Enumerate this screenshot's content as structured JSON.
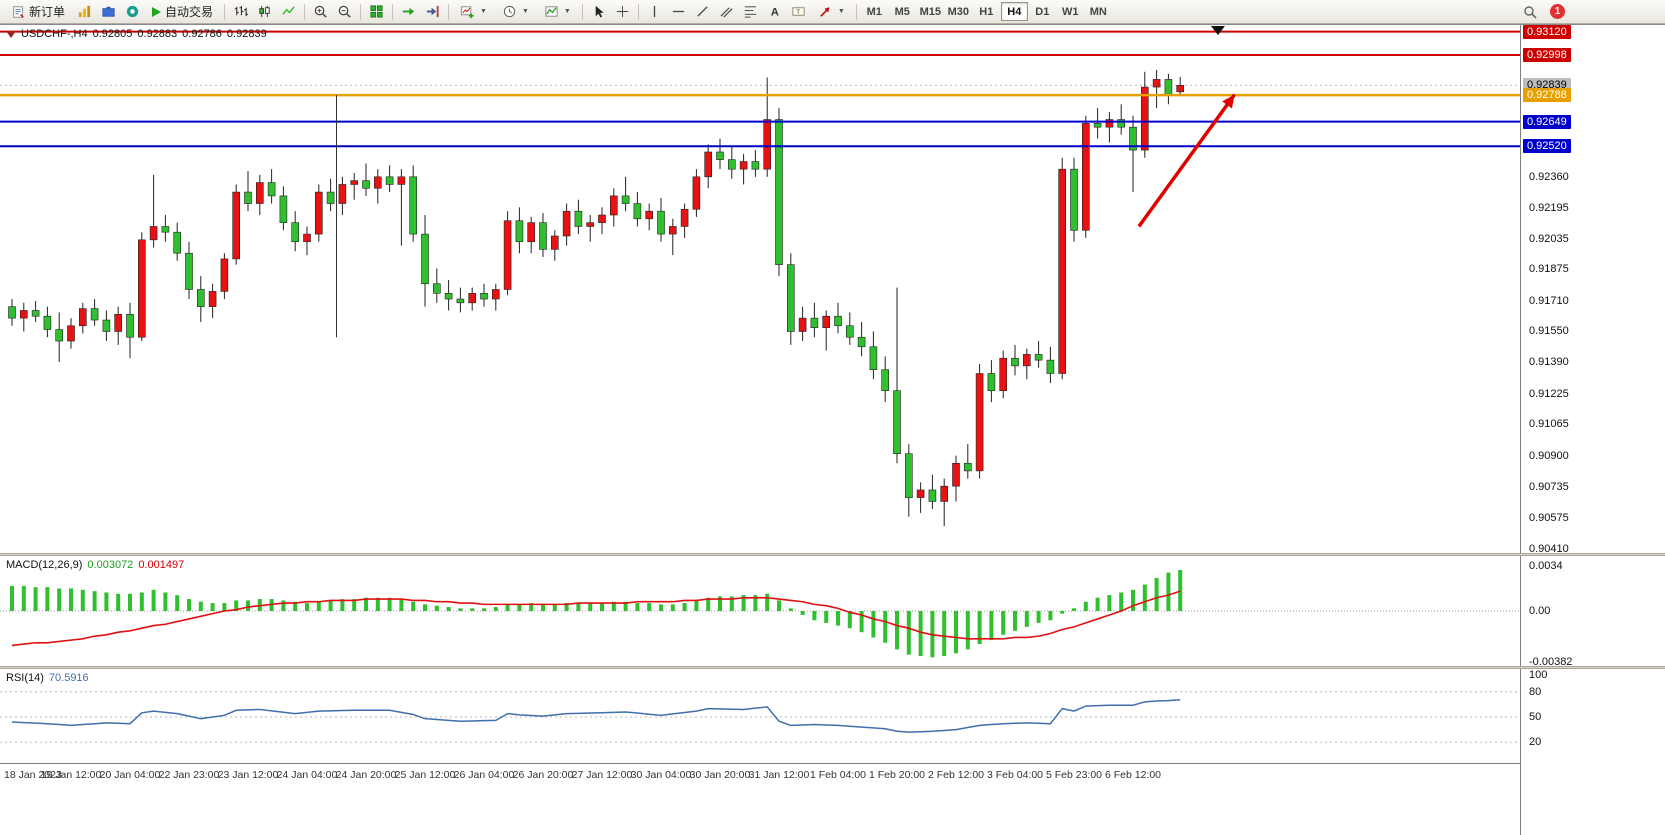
{
  "toolbar": {
    "new_order_label": "新订单",
    "auto_trading_label": "自动交易",
    "timeframes": [
      "M1",
      "M5",
      "M15",
      "M30",
      "H1",
      "H4",
      "D1",
      "W1",
      "MN"
    ],
    "active_timeframe": "H4",
    "notification_count": "1",
    "icon_names": [
      "new-order-icon",
      "market-watch-icon",
      "toolbox-icon",
      "community-icon",
      "autotrading-play-icon",
      "bar-chart-type-icon",
      "candlestick-chart-type-icon",
      "line-chart-type-icon",
      "zoom-in-icon",
      "zoom-out-icon",
      "tile-windows-icon",
      "auto-scroll-icon",
      "chart-shift-icon",
      "new-chart-icon",
      "periods-clock-icon",
      "templates-icon",
      "cursor-icon",
      "crosshair-icon",
      "vertical-line-tool-icon",
      "horizontal-line-tool-icon",
      "trendline-tool-icon",
      "channel-tool-icon",
      "fibonacci-tool-icon",
      "text-tool-icon",
      "label-tool-icon",
      "arrows-tool-icon",
      "search-icon",
      "notification-badge"
    ]
  },
  "chart_data": {
    "type": "candlestick",
    "symbol": "USDCHF-",
    "period": "H4",
    "title": "USDCHF-,H4",
    "ohlc_display": {
      "open": "0.92805",
      "high": "0.92883",
      "low": "0.92786",
      "close": "0.92839"
    },
    "ylim": [
      0.9039,
      0.93155
    ],
    "candles_per_label": 5,
    "x_labels": [
      "18 Jan 2023",
      "19 Jan 12:00",
      "20 Jan 04:00",
      "22 Jan 23:00",
      "23 Jan 12:00",
      "24 Jan 04:00",
      "24 Jan 20:00",
      "25 Jan 12:00",
      "26 Jan 04:00",
      "26 Jan 20:00",
      "27 Jan 12:00",
      "30 Jan 04:00",
      "30 Jan 20:00",
      "31 Jan 12:00",
      "1 Feb 04:00",
      "1 Feb 20:00",
      "2 Feb 12:00",
      "3 Feb 04:00",
      "5 Feb 23:00",
      "6 Feb 12:00"
    ],
    "y_ticks": [
      "0.92360",
      "0.92195",
      "0.92035",
      "0.91875",
      "0.91710",
      "0.91550",
      "0.91390",
      "0.91225",
      "0.91065",
      "0.90900",
      "0.90735",
      "0.90575",
      "0.90410"
    ],
    "hlines": [
      {
        "price": 0.9312,
        "label": "0.93120",
        "color": "#cc0000",
        "width": 2
      },
      {
        "price": 0.92998,
        "label": "0.92998",
        "color": "#cc0000",
        "width": 2
      },
      {
        "price": 0.92788,
        "label": "0.92788",
        "color": "#e8a000",
        "width": 2.5
      },
      {
        "price": 0.92649,
        "label": "0.92649",
        "color": "#0000cc",
        "width": 2
      },
      {
        "price": 0.9252,
        "label": "0.92520",
        "color": "#0000cc",
        "width": 2
      }
    ],
    "bid": {
      "price": 0.92839,
      "label": "0.92839",
      "tag_bg": "#bcbcbc",
      "tag_fg": "#000000"
    },
    "colors": {
      "up": "#e81212",
      "down": "#2fbf2f",
      "wick": "#222222",
      "macd_hist": "#2fbf2f",
      "macd_signal": "#e01010",
      "rsi_line": "#3f6fae",
      "arrow": "#e00000"
    },
    "candles": [
      [
        0.9168,
        0.9172,
        0.9158,
        0.9162
      ],
      [
        0.9162,
        0.917,
        0.9155,
        0.9166
      ],
      [
        0.9166,
        0.9171,
        0.916,
        0.9163
      ],
      [
        0.9163,
        0.9168,
        0.9152,
        0.9156
      ],
      [
        0.9156,
        0.9165,
        0.9139,
        0.915
      ],
      [
        0.915,
        0.9162,
        0.9146,
        0.9158
      ],
      [
        0.9158,
        0.917,
        0.9154,
        0.9167
      ],
      [
        0.9167,
        0.9172,
        0.9158,
        0.9161
      ],
      [
        0.9161,
        0.9166,
        0.915,
        0.9155
      ],
      [
        0.9155,
        0.9168,
        0.9148,
        0.9164
      ],
      [
        0.9164,
        0.917,
        0.9141,
        0.9152
      ],
      [
        0.9152,
        0.9207,
        0.915,
        0.9203
      ],
      [
        0.9203,
        0.9237,
        0.9199,
        0.921
      ],
      [
        0.921,
        0.9216,
        0.9202,
        0.9207
      ],
      [
        0.9207,
        0.9212,
        0.9192,
        0.9196
      ],
      [
        0.9196,
        0.9202,
        0.9172,
        0.9177
      ],
      [
        0.9177,
        0.9184,
        0.916,
        0.9168
      ],
      [
        0.9168,
        0.918,
        0.9162,
        0.9176
      ],
      [
        0.9176,
        0.9196,
        0.9172,
        0.9193
      ],
      [
        0.9193,
        0.9232,
        0.919,
        0.9228
      ],
      [
        0.9228,
        0.9239,
        0.9218,
        0.9222
      ],
      [
        0.9222,
        0.9237,
        0.9216,
        0.9233
      ],
      [
        0.9233,
        0.924,
        0.9222,
        0.9226
      ],
      [
        0.9226,
        0.9231,
        0.9208,
        0.9212
      ],
      [
        0.9212,
        0.9218,
        0.9197,
        0.9202
      ],
      [
        0.9202,
        0.921,
        0.9195,
        0.9206
      ],
      [
        0.9206,
        0.9232,
        0.9202,
        0.9228
      ],
      [
        0.9228,
        0.9235,
        0.9218,
        0.9222
      ],
      [
        0.9222,
        0.9236,
        0.9216,
        0.9232
      ],
      [
        0.9232,
        0.9238,
        0.9224,
        0.9234
      ],
      [
        0.9234,
        0.9243,
        0.9226,
        0.923
      ],
      [
        0.923,
        0.924,
        0.9222,
        0.9236
      ],
      [
        0.9236,
        0.9242,
        0.9228,
        0.9232
      ],
      [
        0.9232,
        0.924,
        0.92,
        0.9236
      ],
      [
        0.9236,
        0.9242,
        0.9202,
        0.9206
      ],
      [
        0.9206,
        0.9216,
        0.9168,
        0.918
      ],
      [
        0.918,
        0.9188,
        0.917,
        0.9175
      ],
      [
        0.9175,
        0.9182,
        0.9166,
        0.9172
      ],
      [
        0.9172,
        0.9178,
        0.9165,
        0.917
      ],
      [
        0.917,
        0.9178,
        0.9166,
        0.9175
      ],
      [
        0.9175,
        0.918,
        0.9168,
        0.9172
      ],
      [
        0.9172,
        0.918,
        0.9166,
        0.9177
      ],
      [
        0.9177,
        0.9218,
        0.9174,
        0.9213
      ],
      [
        0.9213,
        0.922,
        0.9196,
        0.9202
      ],
      [
        0.9202,
        0.9215,
        0.9196,
        0.9212
      ],
      [
        0.9212,
        0.9217,
        0.9194,
        0.9198
      ],
      [
        0.9198,
        0.9208,
        0.9192,
        0.9205
      ],
      [
        0.9205,
        0.9222,
        0.92,
        0.9218
      ],
      [
        0.9218,
        0.9224,
        0.9206,
        0.921
      ],
      [
        0.921,
        0.9216,
        0.9202,
        0.9212
      ],
      [
        0.9212,
        0.922,
        0.9206,
        0.9216
      ],
      [
        0.9216,
        0.923,
        0.921,
        0.9226
      ],
      [
        0.9226,
        0.9236,
        0.9218,
        0.9222
      ],
      [
        0.9222,
        0.9228,
        0.921,
        0.9214
      ],
      [
        0.9214,
        0.9222,
        0.9208,
        0.9218
      ],
      [
        0.9218,
        0.9225,
        0.9202,
        0.9206
      ],
      [
        0.9206,
        0.9214,
        0.9195,
        0.921
      ],
      [
        0.921,
        0.9222,
        0.9204,
        0.9219
      ],
      [
        0.9219,
        0.924,
        0.9215,
        0.9236
      ],
      [
        0.9236,
        0.9253,
        0.923,
        0.9249
      ],
      [
        0.9249,
        0.9256,
        0.924,
        0.9245
      ],
      [
        0.9245,
        0.9252,
        0.9235,
        0.924
      ],
      [
        0.924,
        0.9248,
        0.9232,
        0.9244
      ],
      [
        0.9244,
        0.925,
        0.9236,
        0.924
      ],
      [
        0.924,
        0.9288,
        0.9236,
        0.9266
      ],
      [
        0.9266,
        0.9272,
        0.9184,
        0.919
      ],
      [
        0.919,
        0.9196,
        0.9148,
        0.9155
      ],
      [
        0.9155,
        0.9168,
        0.915,
        0.9162
      ],
      [
        0.9162,
        0.917,
        0.9152,
        0.9157
      ],
      [
        0.9157,
        0.9166,
        0.9145,
        0.9163
      ],
      [
        0.9163,
        0.917,
        0.9154,
        0.9158
      ],
      [
        0.9158,
        0.9165,
        0.9148,
        0.9152
      ],
      [
        0.9152,
        0.916,
        0.9142,
        0.9147
      ],
      [
        0.9147,
        0.9155,
        0.913,
        0.9135
      ],
      [
        0.9135,
        0.9142,
        0.9118,
        0.9124
      ],
      [
        0.9124,
        0.9178,
        0.9086,
        0.9091
      ],
      [
        0.9091,
        0.9096,
        0.9058,
        0.9068
      ],
      [
        0.9068,
        0.9076,
        0.906,
        0.9072
      ],
      [
        0.9072,
        0.908,
        0.9062,
        0.9066
      ],
      [
        0.9066,
        0.9078,
        0.9053,
        0.9074
      ],
      [
        0.9074,
        0.909,
        0.9066,
        0.9086
      ],
      [
        0.9086,
        0.9096,
        0.9078,
        0.9082
      ],
      [
        0.9082,
        0.9138,
        0.9078,
        0.9133
      ],
      [
        0.9133,
        0.914,
        0.9118,
        0.9124
      ],
      [
        0.9124,
        0.9145,
        0.912,
        0.9141
      ],
      [
        0.9141,
        0.9148,
        0.9132,
        0.9137
      ],
      [
        0.9137,
        0.9146,
        0.913,
        0.9143
      ],
      [
        0.9143,
        0.915,
        0.9136,
        0.914
      ],
      [
        0.914,
        0.9147,
        0.9128,
        0.9133
      ],
      [
        0.9133,
        0.9246,
        0.913,
        0.924
      ],
      [
        0.924,
        0.9246,
        0.9202,
        0.9208
      ],
      [
        0.9208,
        0.9268,
        0.9204,
        0.9264
      ],
      [
        0.9264,
        0.9272,
        0.9256,
        0.9262
      ],
      [
        0.9262,
        0.927,
        0.9254,
        0.9266
      ],
      [
        0.9266,
        0.9274,
        0.9258,
        0.9262
      ],
      [
        0.9262,
        0.9268,
        0.9228,
        0.925
      ],
      [
        0.925,
        0.9291,
        0.9246,
        0.9283
      ],
      [
        0.9283,
        0.9292,
        0.9272,
        0.9287
      ],
      [
        0.9287,
        0.929,
        0.9274,
        0.9279
      ],
      [
        0.92805,
        0.92883,
        0.92786,
        0.92839
      ]
    ],
    "annotations": {
      "vline": {
        "index": 27.5,
        "price_top": 0.92788,
        "price_bottom": 0.9152
      },
      "arrow": {
        "from_index": 95.5,
        "from_price": 0.921,
        "to_index": 103.6,
        "to_price": 0.9279
      },
      "top_marker_index": 102.2
    },
    "macd": {
      "label": "MACD(12,26,9)",
      "value": "0.003072",
      "signal_value": "0.001497",
      "y_labels": [
        {
          "v": 0.0034,
          "t": "0.0034"
        },
        {
          "v": 0,
          "t": "0.00"
        },
        {
          "v": -0.00382,
          "t": "-0.00382"
        }
      ],
      "histogram": [
        0.0019,
        0.0019,
        0.0018,
        0.0018,
        0.0017,
        0.0017,
        0.0016,
        0.0015,
        0.0014,
        0.0013,
        0.0013,
        0.0014,
        0.0016,
        0.0014,
        0.0012,
        0.0009,
        0.0007,
        0.0006,
        0.0006,
        0.0008,
        0.0008,
        0.0009,
        0.0009,
        0.0008,
        0.0007,
        0.0006,
        0.0007,
        0.0008,
        0.0009,
        0.0009,
        0.001,
        0.001,
        0.001,
        0.0009,
        0.0007,
        0.0005,
        0.0004,
        0.0003,
        0.0002,
        0.0002,
        0.0002,
        0.0003,
        0.0005,
        0.0005,
        0.0006,
        0.0005,
        0.0005,
        0.0006,
        0.0006,
        0.0006,
        0.0006,
        0.0007,
        0.0007,
        0.0006,
        0.0006,
        0.0005,
        0.0005,
        0.0006,
        0.0008,
        0.001,
        0.0011,
        0.0011,
        0.0012,
        0.0012,
        0.0013,
        0.0008,
        0.0002,
        -0.0003,
        -0.0007,
        -0.0009,
        -0.0011,
        -0.0013,
        -0.0016,
        -0.002,
        -0.0024,
        -0.0029,
        -0.0033,
        -0.0034,
        -0.0035,
        -0.0034,
        -0.0032,
        -0.0029,
        -0.0025,
        -0.0022,
        -0.0018,
        -0.0015,
        -0.0012,
        -0.0009,
        -0.0007,
        -0.0002,
        0.0002,
        0.0007,
        0.001,
        0.0012,
        0.0014,
        0.0016,
        0.002,
        0.0025,
        0.0029,
        0.0031
      ],
      "signal": [
        -0.0026,
        -0.0025,
        -0.0024,
        -0.0024,
        -0.0023,
        -0.0022,
        -0.0021,
        -0.0019,
        -0.0018,
        -0.0016,
        -0.0015,
        -0.0013,
        -0.0011,
        -0.001,
        -0.0008,
        -0.0006,
        -0.0004,
        -0.0002,
        0,
        0.0001,
        0.0003,
        0.0004,
        0.0005,
        0.0006,
        0.0006,
        0.0007,
        0.0007,
        0.0008,
        0.0008,
        0.0008,
        0.0009,
        0.0009,
        0.0009,
        0.0009,
        0.0008,
        0.0008,
        0.0007,
        0.0007,
        0.0006,
        0.0006,
        0.0005,
        0.0005,
        0.0005,
        0.0005,
        0.0005,
        0.0005,
        0.0005,
        0.0005,
        0.0006,
        0.0006,
        0.0006,
        0.0006,
        0.0006,
        0.0007,
        0.0007,
        0.0007,
        0.0007,
        0.0008,
        0.0008,
        0.0009,
        0.0009,
        0.0009,
        0.001,
        0.001,
        0.001,
        0.0009,
        0.0008,
        0.0007,
        0.0005,
        0.0004,
        0.0002,
        -0.0001,
        -0.0003,
        -0.0006,
        -0.0008,
        -0.0011,
        -0.0013,
        -0.0016,
        -0.0018,
        -0.0019,
        -0.002,
        -0.0021,
        -0.0021,
        -0.0021,
        -0.0021,
        -0.002,
        -0.002,
        -0.0019,
        -0.0017,
        -0.0014,
        -0.0012,
        -0.0009,
        -0.0006,
        -0.0003,
        0,
        0.0004,
        0.0007,
        0.001,
        0.0012,
        0.0015
      ]
    },
    "rsi": {
      "label": "RSI(14)",
      "value": "70.5916",
      "levels": [
        80,
        50,
        20
      ],
      "y_labels": [
        {
          "v": 100,
          "t": "100"
        },
        {
          "v": 80,
          "t": "80"
        },
        {
          "v": 50,
          "t": "50"
        },
        {
          "v": 20,
          "t": "20"
        }
      ],
      "values": [
        44,
        43.3,
        42.7,
        42,
        41,
        40,
        41,
        42,
        43,
        42.5,
        42,
        55,
        57,
        55.5,
        54,
        51,
        48,
        50,
        52,
        58,
        58.5,
        59,
        57.3,
        55.7,
        54,
        55.5,
        57,
        57.3,
        57.7,
        58,
        58,
        58,
        58,
        55.5,
        53,
        48,
        47,
        46,
        45,
        45.3,
        45.7,
        46,
        54,
        52.5,
        51.8,
        51,
        52.5,
        54,
        54.3,
        54.7,
        55,
        55.5,
        56,
        54.7,
        53.3,
        52,
        53.7,
        55.3,
        57,
        60,
        59.7,
        59.3,
        59,
        60.5,
        62,
        45,
        40,
        40.5,
        41,
        40.5,
        40,
        39,
        38,
        37,
        36,
        33,
        32,
        32.5,
        33,
        34,
        35,
        37.5,
        40,
        41,
        42,
        42.5,
        43,
        42.5,
        42,
        60,
        57,
        63,
        63.5,
        64,
        64,
        64,
        68,
        69,
        69.5,
        70.6
      ]
    }
  }
}
